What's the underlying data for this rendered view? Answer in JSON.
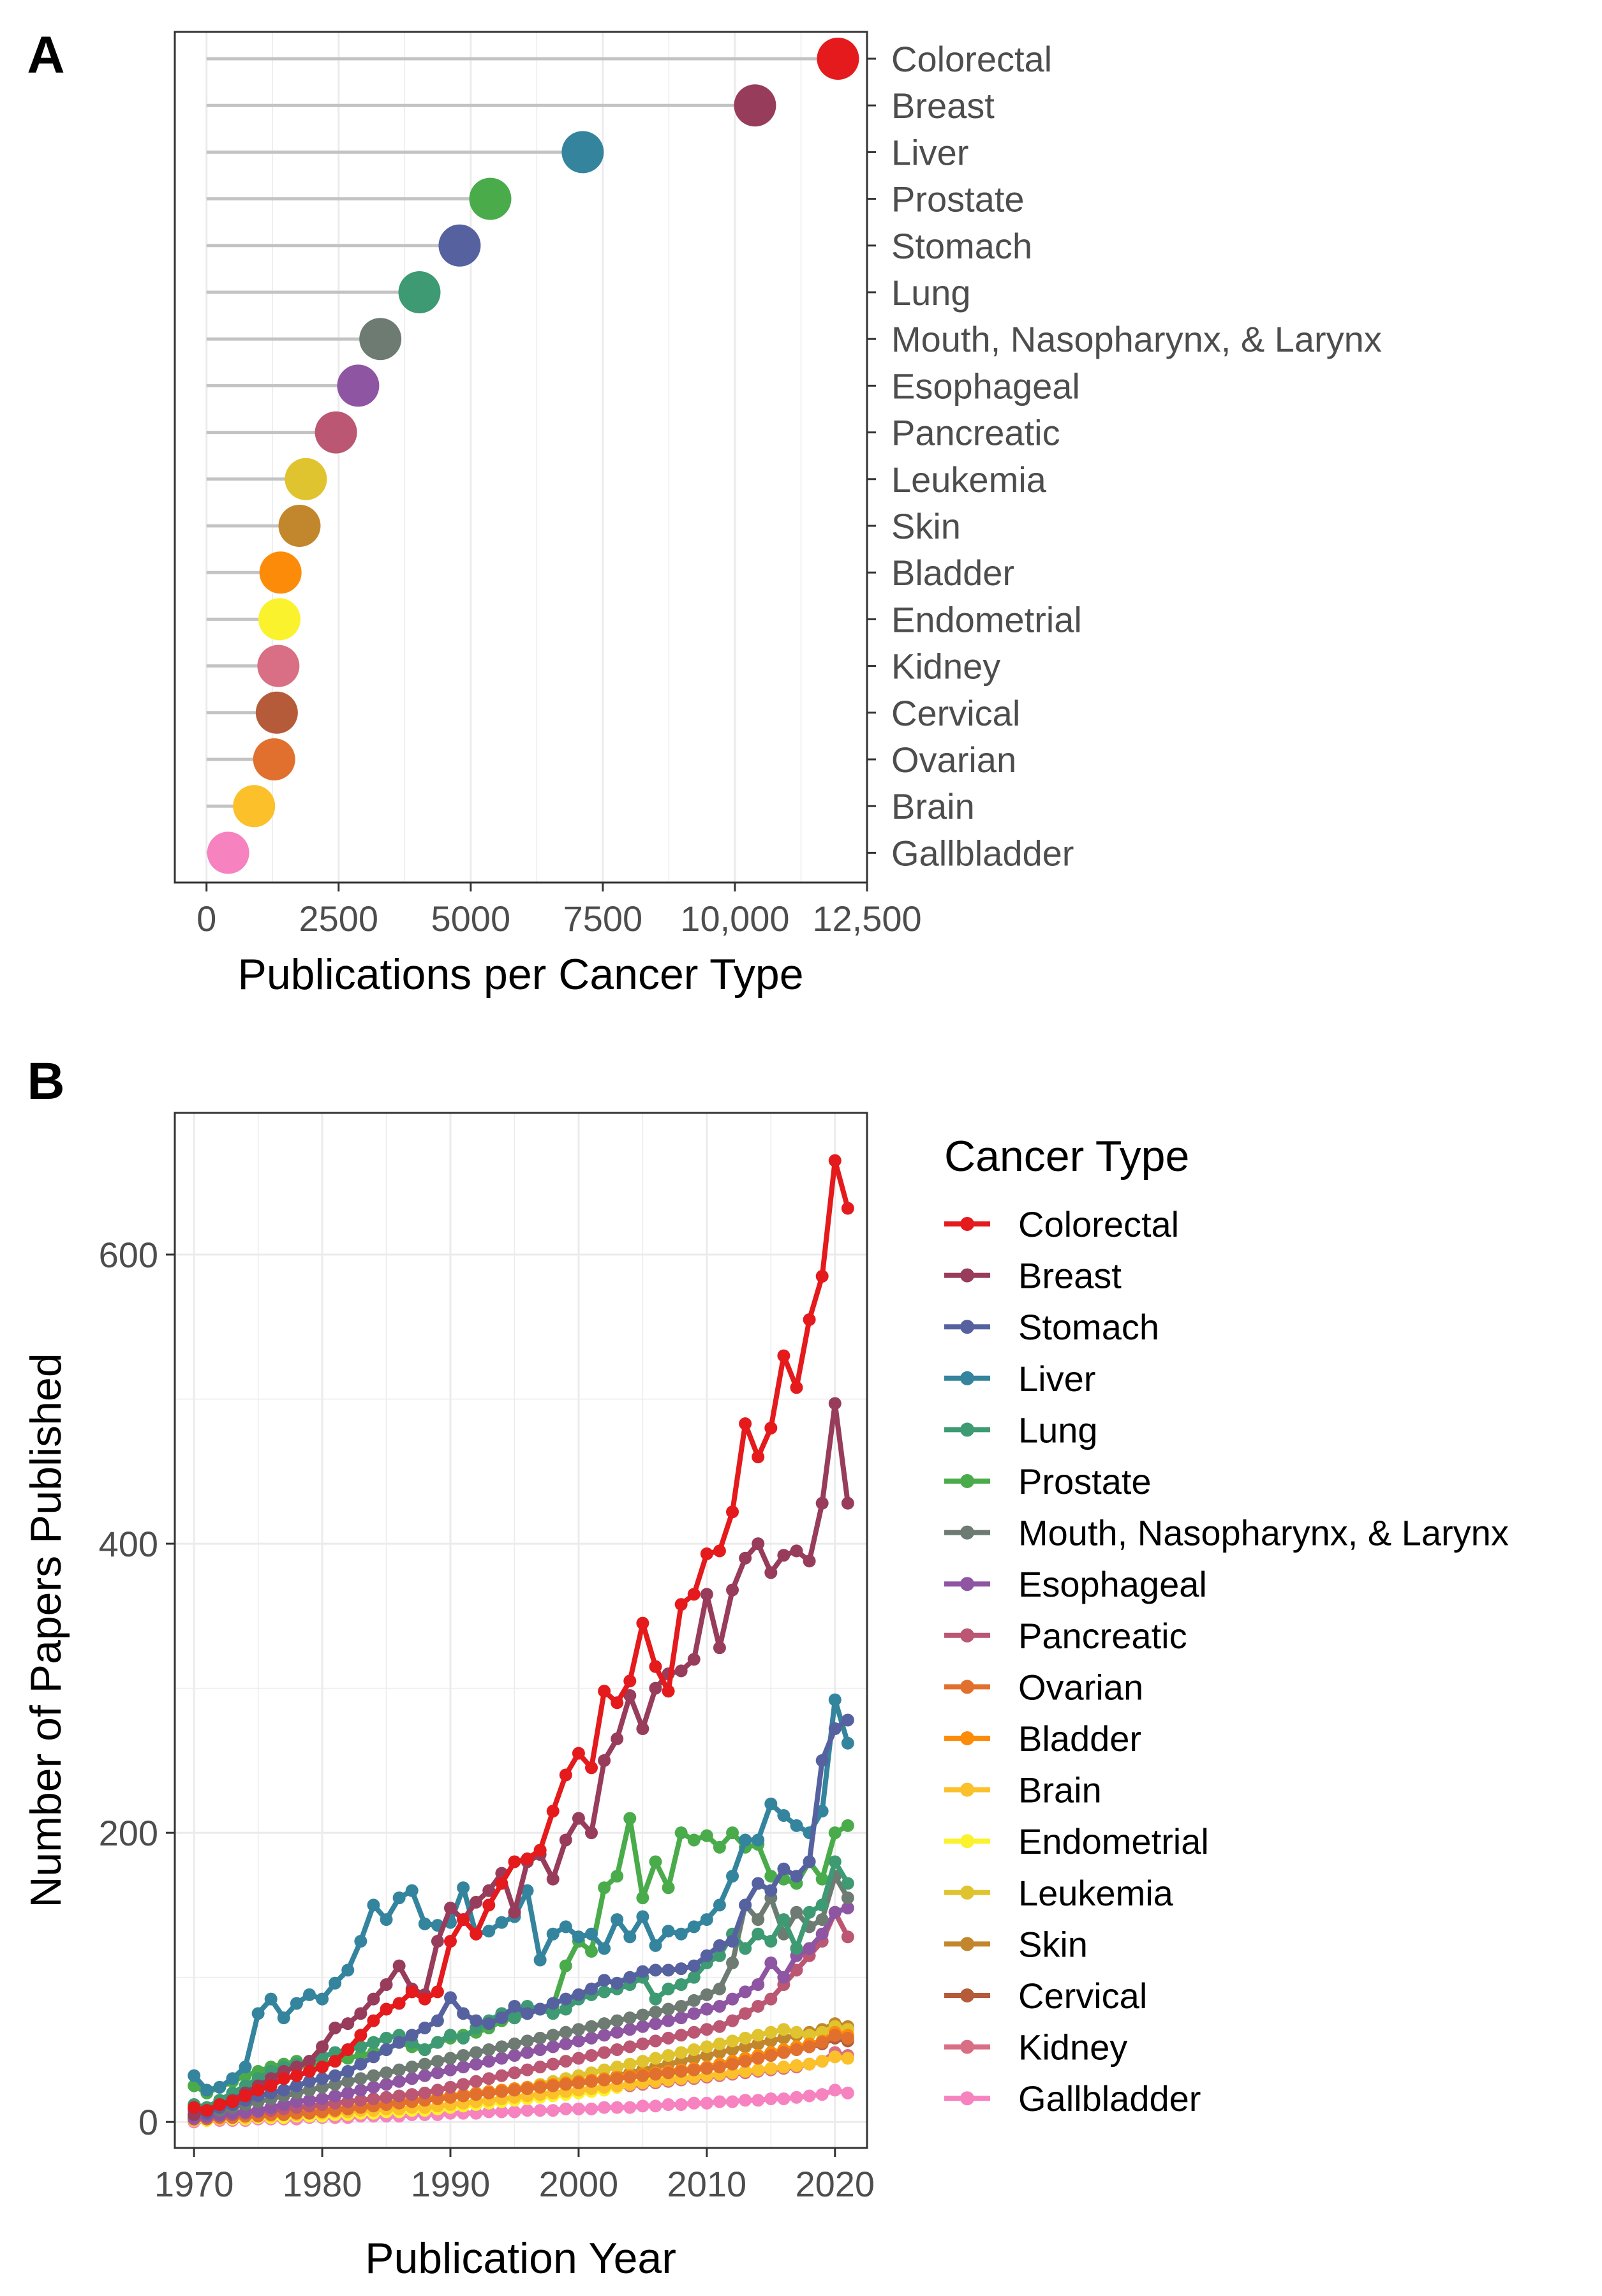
{
  "panel_a": {
    "label": "A"
  },
  "panel_b": {
    "label": "B",
    "legend_title": "Cancer Type"
  },
  "colors": {
    "Colorectal": "#e41a1c",
    "Breast": "#983c5c",
    "Stomach": "#56629f",
    "Liver": "#34849e",
    "Lung": "#3d9a72",
    "Prostate": "#4aab4b",
    "Mouth, Nasopharynx, & Larynx": "#6d7b72",
    "Esophageal": "#8e55a2",
    "Pancreatic": "#bb5773",
    "Leukemia": "#e0c42f",
    "Skin": "#c2872c",
    "Bladder": "#fc8b0a",
    "Endometrial": "#fbf22e",
    "Kidney": "#d96f84",
    "Cervical": "#b55b3a",
    "Ovarian": "#e1702e",
    "Brain": "#fbc02a",
    "Gallbladder": "#f782c0",
    "lollipop_stick": "#c3c3c3",
    "grid": "#ebebeb",
    "axis_text": "#4d4d4d"
  },
  "chart_data": [
    {
      "type": "lollipop",
      "panel": "A",
      "xlabel": "Publications per Cancer Type",
      "ylabel": "",
      "xlim": [
        -600,
        12500
      ],
      "xticks": [
        0,
        2500,
        5000,
        7500,
        10000,
        12500
      ],
      "xtick_labels": [
        "0",
        "2500",
        "5000",
        "7500",
        "10,000",
        "12,500"
      ],
      "y_axis_side": "right",
      "categories": [
        "Colorectal",
        "Breast",
        "Liver",
        "Prostate",
        "Stomach",
        "Lung",
        "Mouth, Nasopharynx, & Larynx",
        "Esophageal",
        "Pancreatic",
        "Leukemia",
        "Skin",
        "Bladder",
        "Endometrial",
        "Kidney",
        "Cervical",
        "Ovarian",
        "Brain",
        "Gallbladder"
      ],
      "values": [
        11950,
        10380,
        7120,
        5370,
        4790,
        4030,
        3290,
        2870,
        2450,
        1880,
        1760,
        1400,
        1380,
        1360,
        1330,
        1280,
        900,
        410
      ]
    },
    {
      "type": "line",
      "panel": "B",
      "xlabel": "Publication Year",
      "ylabel": "Number of Papers Published",
      "xlim": [
        1968.5,
        2022.5
      ],
      "ylim": [
        -18,
        698
      ],
      "xticks": [
        1970,
        1980,
        1990,
        2000,
        2010,
        2020
      ],
      "yticks": [
        0,
        200,
        400,
        600
      ],
      "x_start": 1970,
      "legend_position": "right",
      "series": [
        {
          "name": "Colorectal",
          "values": [
            10,
            8,
            12,
            14,
            18,
            22,
            25,
            30,
            32,
            35,
            38,
            42,
            50,
            60,
            70,
            78,
            82,
            90,
            85,
            90,
            125,
            140,
            130,
            150,
            165,
            180,
            182,
            188,
            215,
            240,
            255,
            245,
            298,
            290,
            305,
            345,
            315,
            298,
            358,
            365,
            393,
            395,
            422,
            483,
            460,
            480,
            530,
            508,
            555,
            585,
            665,
            632
          ]
        },
        {
          "name": "Breast",
          "values": [
            5,
            8,
            12,
            15,
            20,
            25,
            30,
            35,
            38,
            42,
            52,
            65,
            68,
            75,
            85,
            95,
            108,
            92,
            88,
            125,
            148,
            140,
            152,
            160,
            172,
            145,
            180,
            185,
            168,
            195,
            210,
            200,
            250,
            265,
            295,
            272,
            300,
            310,
            312,
            320,
            365,
            328,
            368,
            390,
            400,
            380,
            392,
            395,
            388,
            428,
            497,
            428
          ]
        },
        {
          "name": "Stomach",
          "values": [
            8,
            6,
            10,
            12,
            15,
            18,
            20,
            22,
            25,
            28,
            30,
            32,
            35,
            40,
            45,
            50,
            55,
            60,
            65,
            70,
            86,
            75,
            70,
            68,
            72,
            80,
            75,
            78,
            82,
            85,
            88,
            92,
            98,
            96,
            100,
            104,
            105,
            105,
            106,
            108,
            115,
            122,
            125,
            150,
            165,
            160,
            175,
            170,
            180,
            250,
            272,
            278
          ]
        },
        {
          "name": "Liver",
          "values": [
            32,
            22,
            24,
            30,
            38,
            75,
            85,
            72,
            82,
            88,
            85,
            96,
            105,
            125,
            150,
            140,
            155,
            160,
            137,
            136,
            138,
            162,
            130,
            132,
            138,
            142,
            160,
            112,
            130,
            135,
            128,
            130,
            120,
            140,
            128,
            142,
            122,
            132,
            130,
            135,
            140,
            150,
            170,
            195,
            195,
            220,
            212,
            205,
            200,
            215,
            292,
            262
          ]
        },
        {
          "name": "Lung",
          "values": [
            12,
            10,
            15,
            20,
            25,
            30,
            35,
            38,
            40,
            42,
            45,
            48,
            50,
            52,
            55,
            58,
            60,
            55,
            50,
            55,
            60,
            58,
            65,
            70,
            75,
            72,
            80,
            78,
            75,
            78,
            85,
            88,
            90,
            92,
            95,
            100,
            85,
            92,
            95,
            100,
            110,
            115,
            130,
            120,
            130,
            125,
            140,
            120,
            145,
            150,
            180,
            165
          ]
        },
        {
          "name": "Prostate",
          "values": [
            25,
            20,
            24,
            28,
            32,
            35,
            38,
            40,
            42,
            38,
            40,
            42,
            44,
            46,
            48,
            50,
            55,
            52,
            50,
            55,
            58,
            60,
            62,
            65,
            70,
            72,
            75,
            78,
            80,
            108,
            125,
            118,
            162,
            170,
            210,
            155,
            180,
            162,
            200,
            195,
            198,
            190,
            200,
            190,
            192,
            170,
            168,
            165,
            180,
            168,
            200,
            205
          ]
        },
        {
          "name": "Mouth, Nasopharynx, & Larynx",
          "values": [
            5,
            6,
            8,
            10,
            12,
            14,
            16,
            18,
            20,
            22,
            24,
            26,
            28,
            30,
            32,
            34,
            36,
            38,
            40,
            42,
            44,
            46,
            48,
            50,
            52,
            54,
            56,
            58,
            60,
            62,
            64,
            66,
            68,
            70,
            72,
            74,
            76,
            78,
            80,
            84,
            88,
            92,
            110,
            150,
            140,
            155,
            130,
            145,
            135,
            140,
            170,
            155
          ]
        },
        {
          "name": "Esophageal",
          "values": [
            3,
            4,
            5,
            6,
            7,
            8,
            10,
            12,
            14,
            15,
            16,
            18,
            20,
            22,
            24,
            26,
            28,
            30,
            32,
            34,
            36,
            38,
            40,
            42,
            44,
            46,
            48,
            50,
            52,
            54,
            56,
            58,
            60,
            62,
            64,
            66,
            68,
            70,
            72,
            75,
            78,
            80,
            85,
            90,
            95,
            110,
            100,
            115,
            120,
            130,
            145,
            148
          ]
        },
        {
          "name": "Pancreatic",
          "values": [
            2,
            3,
            4,
            5,
            6,
            7,
            8,
            9,
            10,
            11,
            12,
            13,
            14,
            15,
            16,
            17,
            18,
            19,
            20,
            22,
            24,
            26,
            28,
            30,
            32,
            34,
            36,
            38,
            40,
            42,
            44,
            46,
            48,
            50,
            52,
            54,
            56,
            58,
            60,
            62,
            64,
            66,
            70,
            75,
            80,
            85,
            95,
            105,
            115,
            125,
            145,
            128
          ]
        },
        {
          "name": "Ovarian",
          "values": [
            2,
            2,
            3,
            3,
            4,
            4,
            5,
            5,
            6,
            6,
            7,
            8,
            9,
            10,
            11,
            12,
            13,
            14,
            15,
            16,
            17,
            18,
            19,
            20,
            21,
            22,
            23,
            24,
            25,
            26,
            27,
            28,
            29,
            30,
            31,
            32,
            33,
            34,
            35,
            36,
            37,
            38,
            40,
            42,
            44,
            46,
            48,
            50,
            52,
            55,
            60,
            58
          ]
        },
        {
          "name": "Bladder",
          "values": [
            3,
            3,
            4,
            4,
            5,
            5,
            6,
            6,
            7,
            7,
            8,
            9,
            10,
            11,
            12,
            13,
            14,
            15,
            16,
            17,
            18,
            19,
            20,
            21,
            22,
            23,
            24,
            25,
            26,
            27,
            28,
            29,
            30,
            31,
            32,
            33,
            34,
            35,
            36,
            37,
            38,
            40,
            42,
            44,
            46,
            48,
            50,
            52,
            54,
            56,
            62,
            60
          ]
        },
        {
          "name": "Brain",
          "values": [
            1,
            2,
            2,
            3,
            3,
            4,
            4,
            5,
            5,
            6,
            6,
            7,
            7,
            8,
            8,
            9,
            9,
            10,
            10,
            11,
            12,
            13,
            14,
            15,
            16,
            17,
            18,
            19,
            20,
            21,
            22,
            23,
            24,
            25,
            26,
            27,
            28,
            29,
            30,
            31,
            32,
            33,
            34,
            35,
            36,
            37,
            38,
            39,
            40,
            42,
            45,
            44
          ]
        },
        {
          "name": "Endometrial",
          "values": [
            1,
            1,
            2,
            2,
            2,
            3,
            3,
            3,
            4,
            4,
            4,
            5,
            5,
            6,
            6,
            7,
            7,
            8,
            8,
            9,
            10,
            11,
            12,
            13,
            14,
            15,
            16,
            17,
            18,
            19,
            20,
            21,
            22,
            24,
            26,
            28,
            30,
            32,
            34,
            36,
            38,
            40,
            42,
            44,
            46,
            48,
            50,
            52,
            54,
            56,
            60,
            58
          ]
        },
        {
          "name": "Leukemia",
          "values": [
            3,
            4,
            4,
            5,
            5,
            6,
            6,
            7,
            7,
            8,
            8,
            9,
            10,
            11,
            12,
            13,
            14,
            15,
            16,
            17,
            18,
            19,
            20,
            21,
            22,
            23,
            24,
            26,
            28,
            30,
            32,
            34,
            36,
            38,
            40,
            42,
            44,
            46,
            48,
            50,
            52,
            54,
            56,
            58,
            60,
            62,
            64,
            62,
            60,
            62,
            66,
            64
          ]
        },
        {
          "name": "Skin",
          "values": [
            2,
            2,
            3,
            3,
            4,
            4,
            5,
            5,
            6,
            6,
            7,
            8,
            9,
            10,
            11,
            12,
            13,
            14,
            15,
            16,
            17,
            18,
            19,
            20,
            21,
            22,
            23,
            24,
            25,
            26,
            27,
            28,
            30,
            32,
            34,
            36,
            38,
            40,
            42,
            44,
            46,
            48,
            50,
            52,
            54,
            56,
            58,
            60,
            62,
            64,
            68,
            66
          ]
        },
        {
          "name": "Cervical",
          "values": [
            3,
            3,
            4,
            4,
            5,
            5,
            6,
            6,
            7,
            7,
            8,
            9,
            10,
            11,
            12,
            13,
            14,
            15,
            16,
            17,
            18,
            19,
            20,
            21,
            22,
            23,
            24,
            25,
            26,
            27,
            28,
            29,
            30,
            31,
            32,
            33,
            34,
            35,
            36,
            37,
            38,
            39,
            40,
            42,
            44,
            46,
            48,
            50,
            52,
            54,
            58,
            56
          ]
        },
        {
          "name": "Kidney",
          "values": [
            1,
            2,
            2,
            3,
            3,
            3,
            4,
            4,
            4,
            5,
            5,
            6,
            6,
            7,
            7,
            8,
            8,
            9,
            9,
            10,
            11,
            12,
            13,
            14,
            15,
            16,
            17,
            18,
            19,
            20,
            21,
            22,
            23,
            24,
            25,
            26,
            27,
            28,
            29,
            30,
            31,
            32,
            33,
            34,
            35,
            36,
            37,
            38,
            40,
            42,
            48,
            46
          ]
        },
        {
          "name": "Gallbladder",
          "values": [
            0,
            1,
            1,
            1,
            1,
            2,
            2,
            2,
            2,
            3,
            3,
            3,
            3,
            4,
            4,
            4,
            4,
            5,
            5,
            5,
            6,
            6,
            6,
            7,
            7,
            7,
            8,
            8,
            8,
            9,
            9,
            9,
            10,
            10,
            10,
            11,
            11,
            12,
            12,
            13,
            13,
            14,
            14,
            15,
            15,
            16,
            16,
            17,
            18,
            19,
            22,
            20
          ]
        }
      ]
    }
  ]
}
